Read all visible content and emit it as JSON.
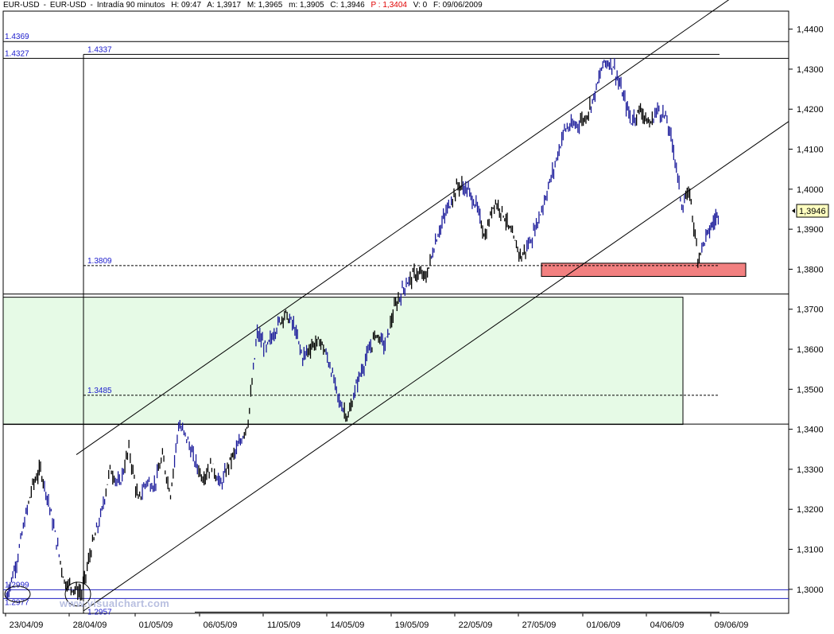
{
  "header": {
    "symbol": "EUR-USD",
    "name": "EUR-USD",
    "interval": "Intradía 90 minutos",
    "time": "H: 09:47",
    "open": "A: 1,3917",
    "high": "M: 1,3965",
    "low": "m: 1,3905",
    "close": "C: 1,3946",
    "p": "P : 1,3404",
    "volume": "V: 0",
    "date": "F: 09/06/2009"
  },
  "watermark": "www.visualchart.com",
  "colors": {
    "price_blue": "#1a1a9a",
    "price_black": "#000000",
    "level_label": "#1a1acc",
    "green_zone": "#e6fae6",
    "red_zone": "#f28080",
    "last_price_bg": "#ffffc0"
  },
  "chart_data": {
    "type": "candlestick",
    "title": "EUR-USD",
    "timeframe": "90 minutes",
    "ylim": [
      1.294,
      1.4445
    ],
    "y_ticks": [
      "1,3000",
      "1,3100",
      "1,3200",
      "1,3300",
      "1,3400",
      "1,3500",
      "1,3600",
      "1,3700",
      "1,3800",
      "1,3900",
      "1,4000",
      "1,4100",
      "1,4200",
      "1,4300",
      "1,4400"
    ],
    "x_ticks": [
      "23/04/09",
      "28/04/09",
      "01/05/09",
      "06/05/09",
      "11/05/09",
      "14/05/09",
      "19/05/09",
      "22/05/09",
      "27/05/09",
      "01/06/09",
      "04/06/09",
      "09/06/09"
    ],
    "last_price": "1,3946",
    "price_path": [
      {
        "d": "23/04/09",
        "v": 1.298,
        "c": "blue"
      },
      {
        "v": 1.307,
        "c": "blue"
      },
      {
        "v": 1.317,
        "c": "blue"
      },
      {
        "v": 1.326,
        "c": "black"
      },
      {
        "v": 1.33,
        "c": "black"
      },
      {
        "v": 1.322,
        "c": "blue"
      },
      {
        "v": 1.312,
        "c": "blue"
      },
      {
        "v": 1.302,
        "c": "black"
      },
      {
        "d": "28/04/09",
        "v": 1.3005,
        "c": "black"
      },
      {
        "v": 1.299,
        "c": "black"
      },
      {
        "v": 1.31,
        "c": "black"
      },
      {
        "v": 1.318,
        "c": "blue"
      },
      {
        "v": 1.33,
        "c": "black"
      },
      {
        "v": 1.326,
        "c": "blue"
      },
      {
        "v": 1.335,
        "c": "black"
      },
      {
        "d": "01/05/09",
        "v": 1.322,
        "c": "black"
      },
      {
        "v": 1.327,
        "c": "blue"
      },
      {
        "v": 1.326,
        "c": "blue"
      },
      {
        "v": 1.333,
        "c": "black"
      },
      {
        "v": 1.324,
        "c": "black"
      },
      {
        "v": 1.341,
        "c": "blue"
      },
      {
        "v": 1.338,
        "c": "blue"
      },
      {
        "v": 1.332,
        "c": "blue"
      },
      {
        "d": "06/05/09",
        "v": 1.328,
        "c": "black"
      },
      {
        "v": 1.331,
        "c": "black"
      },
      {
        "v": 1.326,
        "c": "blue"
      },
      {
        "v": 1.332,
        "c": "black"
      },
      {
        "v": 1.336,
        "c": "blue"
      },
      {
        "v": 1.342,
        "c": "black"
      },
      {
        "v": 1.364,
        "c": "blue"
      },
      {
        "d": "11/05/09",
        "v": 1.36,
        "c": "blue"
      },
      {
        "v": 1.365,
        "c": "blue"
      },
      {
        "v": 1.369,
        "c": "black"
      },
      {
        "v": 1.366,
        "c": "blue"
      },
      {
        "v": 1.358,
        "c": "blue"
      },
      {
        "v": 1.361,
        "c": "black"
      },
      {
        "v": 1.362,
        "c": "black"
      },
      {
        "d": "14/05/09",
        "v": 1.356,
        "c": "blue"
      },
      {
        "v": 1.347,
        "c": "blue"
      },
      {
        "v": 1.343,
        "c": "black"
      },
      {
        "v": 1.352,
        "c": "blue"
      },
      {
        "v": 1.358,
        "c": "blue"
      },
      {
        "v": 1.364,
        "c": "black"
      },
      {
        "v": 1.361,
        "c": "blue"
      },
      {
        "d": "19/05/09",
        "v": 1.37,
        "c": "black"
      },
      {
        "v": 1.376,
        "c": "blue"
      },
      {
        "v": 1.379,
        "c": "black"
      },
      {
        "v": 1.378,
        "c": "black"
      },
      {
        "v": 1.388,
        "c": "blue"
      },
      {
        "v": 1.395,
        "c": "blue"
      },
      {
        "d": "22/05/09",
        "v": 1.401,
        "c": "black"
      },
      {
        "v": 1.4,
        "c": "blue"
      },
      {
        "v": 1.396,
        "c": "blue"
      },
      {
        "v": 1.388,
        "c": "black"
      },
      {
        "v": 1.397,
        "c": "black"
      },
      {
        "v": 1.394,
        "c": "black"
      },
      {
        "v": 1.388,
        "c": "black"
      },
      {
        "d": "27/05/09",
        "v": 1.383,
        "c": "black"
      },
      {
        "v": 1.388,
        "c": "blue"
      },
      {
        "v": 1.396,
        "c": "blue"
      },
      {
        "v": 1.405,
        "c": "blue"
      },
      {
        "v": 1.415,
        "c": "blue"
      },
      {
        "v": 1.416,
        "c": "blue"
      },
      {
        "d": "01/06/09",
        "v": 1.418,
        "c": "black"
      },
      {
        "v": 1.424,
        "c": "blue"
      },
      {
        "v": 1.432,
        "c": "blue"
      },
      {
        "v": 1.431,
        "c": "blue"
      },
      {
        "v": 1.424,
        "c": "blue"
      },
      {
        "v": 1.417,
        "c": "blue"
      },
      {
        "v": 1.42,
        "c": "black"
      },
      {
        "d": "04/06/09",
        "v": 1.416,
        "c": "black"
      },
      {
        "v": 1.42,
        "c": "blue"
      },
      {
        "v": 1.418,
        "c": "blue"
      },
      {
        "v": 1.41,
        "c": "blue"
      },
      {
        "v": 1.396,
        "c": "blue"
      },
      {
        "v": 1.399,
        "c": "black"
      },
      {
        "v": 1.383,
        "c": "black"
      },
      {
        "v": 1.388,
        "c": "blue"
      },
      {
        "d": "09/06/09",
        "v": 1.3946,
        "c": "blue"
      }
    ],
    "levels": [
      {
        "label": "1.4369",
        "value": 1.4369
      },
      {
        "label": "1.4327",
        "value": 1.4327
      },
      {
        "label": "1.4337",
        "value": 1.4337
      },
      {
        "label": "1.3809",
        "value": 1.3809
      },
      {
        "label": "1.3485",
        "value": 1.3485
      },
      {
        "label": "1.2999",
        "value": 1.2999
      },
      {
        "label": "1.2977",
        "value": 1.2977
      },
      {
        "label": "1.2957",
        "value": 1.2957
      }
    ],
    "extra_levels": [
      1.3738,
      1.3413
    ],
    "channel": {
      "lower": [
        {
          "d": "28/04/09",
          "v": 1.2957
        },
        {
          "d": "09/06/09",
          "v": 1.407
        }
      ],
      "upper": [
        {
          "d": "28/04/09",
          "v": 1.336
        },
        {
          "d": "09/06/09",
          "v": 1.4478
        }
      ]
    },
    "zones": [
      {
        "name": "support-box",
        "from": "27/05/09",
        "to": "09/06/09",
        "low": 1.3782,
        "high": 1.3815
      },
      {
        "name": "consolidation-range",
        "from": "23/04/09",
        "to": "06/06/09",
        "low": 1.3412,
        "high": 1.373
      }
    ]
  }
}
